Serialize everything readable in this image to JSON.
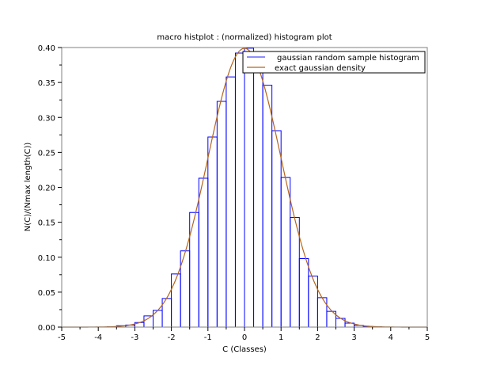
{
  "chart_data": {
    "type": "bar",
    "title": "macro histplot : (normalized) histogram plot",
    "xlabel": "C (Classes)",
    "ylabel": "N(C)/(Nmax length(C))",
    "xlim": [
      -5,
      5
    ],
    "ylim": [
      0,
      0.4
    ],
    "xticks": [
      "-5",
      "-4",
      "-3",
      "-2",
      "-1",
      "0",
      "1",
      "2",
      "3",
      "4",
      "5"
    ],
    "yticks": [
      "0.00",
      "0.05",
      "0.10",
      "0.15",
      "0.20",
      "0.25",
      "0.30",
      "0.35",
      "0.40"
    ],
    "grid": false,
    "legend_position": "top-right",
    "bin_width": 0.25,
    "bin_starts": [
      -3.75,
      -3.5,
      -3.25,
      -3.0,
      -2.75,
      -2.5,
      -2.25,
      -2.0,
      -1.75,
      -1.5,
      -1.25,
      -1.0,
      -0.75,
      -0.5,
      -0.25,
      0.0,
      0.25,
      0.5,
      0.75,
      1.0,
      1.25,
      1.5,
      1.75,
      2.0,
      2.25,
      2.5,
      2.75,
      3.0,
      3.25,
      3.5
    ],
    "series": [
      {
        "name": "gaussian random sample histogram",
        "color": "#0000ff",
        "values": [
          0.0005,
          0.002,
          0.003,
          0.0065,
          0.016,
          0.024,
          0.041,
          0.076,
          0.109,
          0.164,
          0.213,
          0.272,
          0.323,
          0.358,
          0.392,
          0.399,
          0.39,
          0.346,
          0.281,
          0.214,
          0.157,
          0.098,
          0.073,
          0.042,
          0.0225,
          0.0125,
          0.0057,
          0.0025,
          0.001,
          0.0005
        ]
      },
      {
        "name": "exact gaussian density",
        "color": "#b5651d",
        "function": "exp(-x^2/2)/sqrt(2*pi)"
      }
    ]
  }
}
